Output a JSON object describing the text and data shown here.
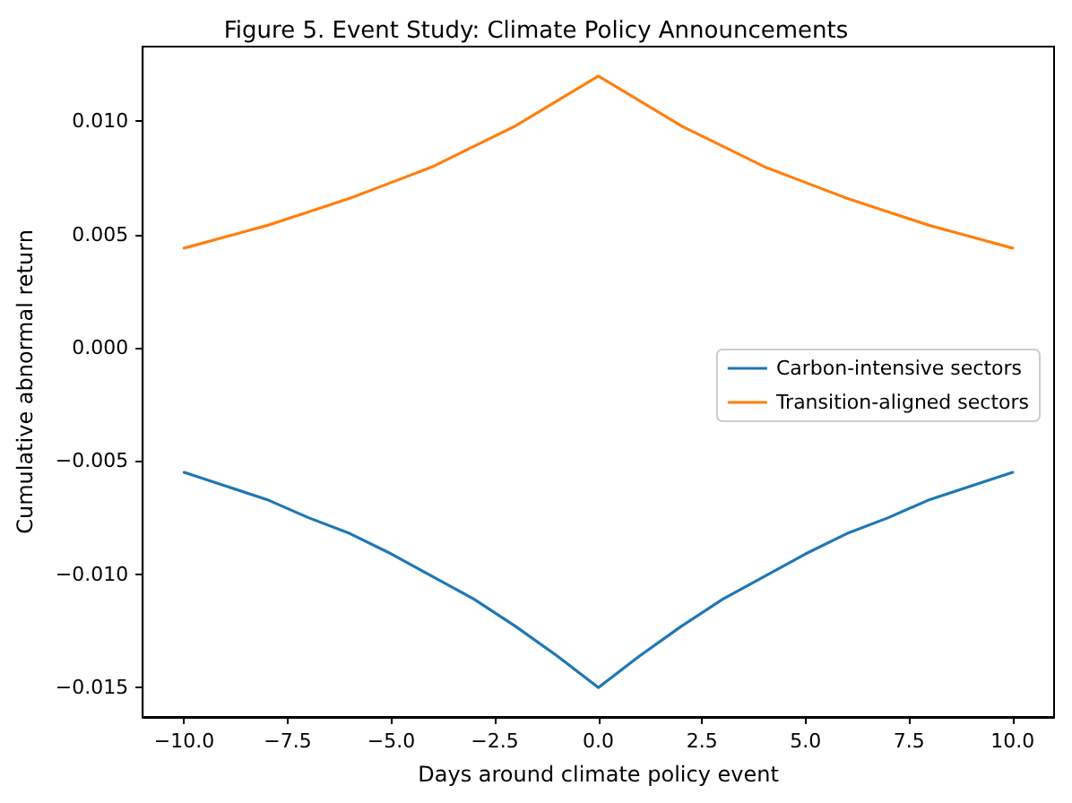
{
  "chart_data": {
    "type": "line",
    "title": "Figure 5. Event Study: Climate Policy Announcements",
    "xlabel": "Days around climate policy event",
    "ylabel": "Cumulative abnormal return",
    "x": [
      -10,
      -9,
      -8,
      -7,
      -6,
      -5,
      -4,
      -3,
      -2,
      -1,
      0,
      1,
      2,
      3,
      4,
      5,
      6,
      7,
      8,
      9,
      10
    ],
    "series": [
      {
        "name": "Carbon-intensive sectors",
        "color": "#1f77b4",
        "values": [
          -0.0055,
          -0.0061,
          -0.0067,
          -0.0075,
          -0.0082,
          -0.0091,
          -0.0101,
          -0.0111,
          -0.0123,
          -0.0136,
          -0.015,
          -0.0136,
          -0.0123,
          -0.0111,
          -0.0101,
          -0.0091,
          -0.0082,
          -0.0075,
          -0.0067,
          -0.0061,
          -0.0055
        ]
      },
      {
        "name": "Transition-aligned sectors",
        "color": "#ff7f0e",
        "values": [
          0.0044,
          0.0049,
          0.0054,
          0.006,
          0.0066,
          0.0073,
          0.008,
          0.0089,
          0.0098,
          0.0109,
          0.012,
          0.0109,
          0.0098,
          0.0089,
          0.008,
          0.0073,
          0.0066,
          0.006,
          0.0054,
          0.0049,
          0.0044
        ]
      }
    ],
    "xlim": [
      -11,
      11
    ],
    "xticks": [
      {
        "value": -10,
        "label": "−10.0"
      },
      {
        "value": -7.5,
        "label": "−7.5"
      },
      {
        "value": -5,
        "label": "−5.0"
      },
      {
        "value": -2.5,
        "label": "−2.5"
      },
      {
        "value": 0,
        "label": "0.0"
      },
      {
        "value": 2.5,
        "label": "2.5"
      },
      {
        "value": 5,
        "label": "5.0"
      },
      {
        "value": 7.5,
        "label": "7.5"
      },
      {
        "value": 10,
        "label": "10.0"
      }
    ],
    "ylim": [
      -0.0163,
      0.0133
    ],
    "yticks": [
      {
        "value": -0.015,
        "label": "−0.015"
      },
      {
        "value": -0.01,
        "label": "−0.010"
      },
      {
        "value": -0.005,
        "label": "−0.005"
      },
      {
        "value": 0,
        "label": "0.000"
      },
      {
        "value": 0.005,
        "label": "0.005"
      },
      {
        "value": 0.01,
        "label": "0.010"
      }
    ],
    "grid": false,
    "legend": "right",
    "marker": "none",
    "line_style": "solid"
  }
}
